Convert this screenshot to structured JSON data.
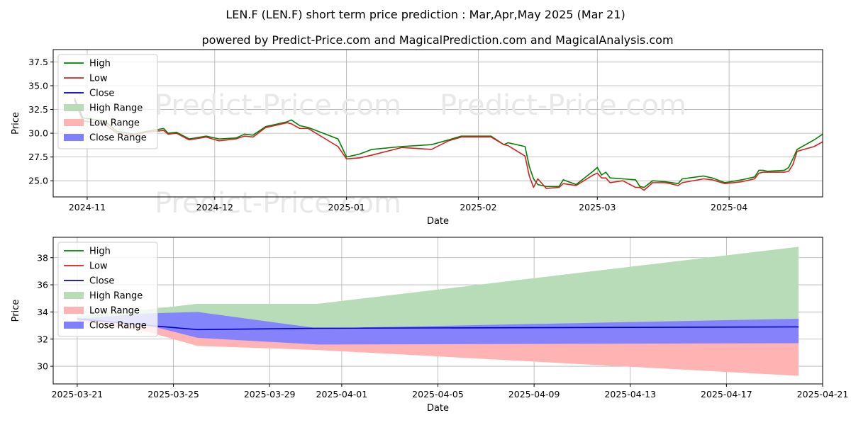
{
  "title": "LEN.F (LEN.F) short term price prediction : Mar,Apr,May 2025 (Mar 21)",
  "subtitle": "powered by Predict-Price.com and MagicalPrediction.com and MagicalAnalysis.com",
  "watermark": "Predict-Price.com",
  "colors": {
    "high": "#008000",
    "low": "#d62020",
    "close": "#0000cc",
    "high_range": "#b7dcb7",
    "low_range": "#ffb3b3",
    "close_range": "#7f7fff"
  },
  "chart_data": [
    {
      "type": "line",
      "xlabel": "Date",
      "ylabel": "Price",
      "xlim": [
        "2024-10-24",
        "2025-04-23"
      ],
      "ylim": [
        23.3,
        38.8
      ],
      "grid": true,
      "legend_position": "top-left",
      "x_ticks": [
        {
          "date": "2024-11-01",
          "label": "2024-11"
        },
        {
          "date": "2024-12-01",
          "label": "2024-12"
        },
        {
          "date": "2025-01-01",
          "label": "2025-01"
        },
        {
          "date": "2025-02-01",
          "label": "2025-02"
        },
        {
          "date": "2025-03-01",
          "label": "2025-03"
        },
        {
          "date": "2025-04-01",
          "label": "2025-04"
        }
      ],
      "y_ticks": [
        {
          "value": 25.0,
          "label": "25.0"
        },
        {
          "value": 27.5,
          "label": "27.5"
        },
        {
          "value": 30.0,
          "label": "30.0"
        },
        {
          "value": 32.5,
          "label": "32.5"
        },
        {
          "value": 35.0,
          "label": "35.0"
        },
        {
          "value": 37.5,
          "label": "37.5"
        }
      ],
      "series": [
        {
          "name": "High",
          "color": "#008000",
          "points": [
            [
              "2024-10-29",
              33.7
            ],
            [
              "2024-10-31",
              31.6
            ],
            [
              "2024-11-05",
              31.3
            ],
            [
              "2024-11-08",
              30.2
            ],
            [
              "2024-11-12",
              29.9
            ],
            [
              "2024-11-15",
              30.2
            ],
            [
              "2024-11-19",
              30.5
            ],
            [
              "2024-11-20",
              30.0
            ],
            [
              "2024-11-22",
              30.1
            ],
            [
              "2024-11-25",
              29.4
            ],
            [
              "2024-11-29",
              29.7
            ],
            [
              "2024-12-02",
              29.4
            ],
            [
              "2024-12-06",
              29.5
            ],
            [
              "2024-12-08",
              29.9
            ],
            [
              "2024-12-10",
              29.8
            ],
            [
              "2024-12-13",
              30.7
            ],
            [
              "2024-12-18",
              31.2
            ],
            [
              "2024-12-19",
              31.4
            ],
            [
              "2024-12-21",
              30.8
            ],
            [
              "2024-12-23",
              30.6
            ],
            [
              "2024-12-30",
              29.4
            ],
            [
              "2025-01-01",
              27.5
            ],
            [
              "2025-01-04",
              27.8
            ],
            [
              "2025-01-07",
              28.3
            ],
            [
              "2025-01-14",
              28.6
            ],
            [
              "2025-01-21",
              28.8
            ],
            [
              "2025-01-25",
              29.3
            ],
            [
              "2025-01-28",
              29.7
            ],
            [
              "2025-02-04",
              29.7
            ],
            [
              "2025-02-07",
              28.8
            ],
            [
              "2025-02-08",
              29.0
            ],
            [
              "2025-02-12",
              28.6
            ],
            [
              "2025-02-13",
              26.5
            ],
            [
              "2025-02-14",
              25.2
            ],
            [
              "2025-02-15",
              24.6
            ],
            [
              "2025-02-17",
              24.4
            ],
            [
              "2025-02-20",
              24.4
            ],
            [
              "2025-02-21",
              25.1
            ],
            [
              "2025-02-24",
              24.6
            ],
            [
              "2025-02-28",
              26.0
            ],
            [
              "2025-03-01",
              26.4
            ],
            [
              "2025-03-02",
              25.6
            ],
            [
              "2025-03-03",
              25.9
            ],
            [
              "2025-03-04",
              25.3
            ],
            [
              "2025-03-07",
              25.2
            ],
            [
              "2025-03-10",
              25.1
            ],
            [
              "2025-03-11",
              24.4
            ],
            [
              "2025-03-12",
              24.3
            ],
            [
              "2025-03-14",
              25.0
            ],
            [
              "2025-03-17",
              24.9
            ],
            [
              "2025-03-20",
              24.7
            ],
            [
              "2025-03-21",
              25.2
            ],
            [
              "2025-03-26",
              25.5
            ],
            [
              "2025-03-28",
              25.3
            ],
            [
              "2025-03-31",
              24.8
            ],
            [
              "2025-04-04",
              25.1
            ],
            [
              "2025-04-07",
              25.4
            ],
            [
              "2025-04-08",
              26.1
            ],
            [
              "2025-04-09",
              26.1
            ],
            [
              "2025-04-10",
              26.0
            ],
            [
              "2025-04-14",
              26.1
            ],
            [
              "2025-04-15",
              26.4
            ],
            [
              "2025-04-16",
              27.3
            ],
            [
              "2025-04-17",
              28.3
            ],
            [
              "2025-04-21",
              29.3
            ],
            [
              "2025-04-23",
              29.9
            ]
          ]
        },
        {
          "name": "Low",
          "color": "#d62020",
          "points": [
            [
              "2024-10-29",
              33.5
            ],
            [
              "2024-10-31",
              31.3
            ],
            [
              "2024-11-05",
              31.0
            ],
            [
              "2024-11-08",
              30.0
            ],
            [
              "2024-11-12",
              29.8
            ],
            [
              "2024-11-15",
              30.1
            ],
            [
              "2024-11-19",
              30.3
            ],
            [
              "2024-11-20",
              29.9
            ],
            [
              "2024-11-22",
              30.0
            ],
            [
              "2024-11-25",
              29.3
            ],
            [
              "2024-11-29",
              29.6
            ],
            [
              "2024-12-02",
              29.2
            ],
            [
              "2024-12-06",
              29.4
            ],
            [
              "2024-12-08",
              29.7
            ],
            [
              "2024-12-10",
              29.6
            ],
            [
              "2024-12-13",
              30.6
            ],
            [
              "2024-12-18",
              31.1
            ],
            [
              "2024-12-19",
              31.0
            ],
            [
              "2024-12-21",
              30.5
            ],
            [
              "2024-12-23",
              30.5
            ],
            [
              "2024-12-30",
              28.6
            ],
            [
              "2025-01-01",
              27.3
            ],
            [
              "2025-01-04",
              27.4
            ],
            [
              "2025-01-07",
              27.7
            ],
            [
              "2025-01-14",
              28.5
            ],
            [
              "2025-01-21",
              28.3
            ],
            [
              "2025-01-25",
              29.2
            ],
            [
              "2025-01-28",
              29.6
            ],
            [
              "2025-02-04",
              29.6
            ],
            [
              "2025-02-07",
              28.8
            ],
            [
              "2025-02-08",
              28.7
            ],
            [
              "2025-02-12",
              27.6
            ],
            [
              "2025-02-13",
              25.5
            ],
            [
              "2025-02-14",
              24.3
            ],
            [
              "2025-02-15",
              25.2
            ],
            [
              "2025-02-17",
              24.2
            ],
            [
              "2025-02-20",
              24.3
            ],
            [
              "2025-02-21",
              24.7
            ],
            [
              "2025-02-24",
              24.5
            ],
            [
              "2025-02-28",
              25.6
            ],
            [
              "2025-03-01",
              25.8
            ],
            [
              "2025-03-02",
              25.3
            ],
            [
              "2025-03-03",
              25.3
            ],
            [
              "2025-03-04",
              24.8
            ],
            [
              "2025-03-07",
              25.0
            ],
            [
              "2025-03-10",
              24.3
            ],
            [
              "2025-03-11",
              24.3
            ],
            [
              "2025-03-12",
              24.0
            ],
            [
              "2025-03-14",
              24.8
            ],
            [
              "2025-03-17",
              24.8
            ],
            [
              "2025-03-20",
              24.5
            ],
            [
              "2025-03-21",
              24.8
            ],
            [
              "2025-03-26",
              25.2
            ],
            [
              "2025-03-28",
              25.1
            ],
            [
              "2025-03-31",
              24.7
            ],
            [
              "2025-04-04",
              24.9
            ],
            [
              "2025-04-07",
              25.2
            ],
            [
              "2025-04-08",
              25.8
            ],
            [
              "2025-04-09",
              25.9
            ],
            [
              "2025-04-10",
              25.9
            ],
            [
              "2025-04-14",
              25.9
            ],
            [
              "2025-04-15",
              26.0
            ],
            [
              "2025-04-16",
              26.7
            ],
            [
              "2025-04-17",
              28.1
            ],
            [
              "2025-04-21",
              28.6
            ],
            [
              "2025-04-23",
              29.1
            ]
          ]
        }
      ]
    },
    {
      "type": "line",
      "xlabel": "Date",
      "ylabel": "Price",
      "xlim": [
        "2025-03-20",
        "2025-04-21"
      ],
      "ylim": [
        28.7,
        39.5
      ],
      "grid": true,
      "legend_position": "top-left",
      "x_ticks": [
        {
          "date": "2025-03-21",
          "label": "2025-03-21"
        },
        {
          "date": "2025-03-25",
          "label": "2025-03-25"
        },
        {
          "date": "2025-03-29",
          "label": "2025-03-29"
        },
        {
          "date": "2025-04-01",
          "label": "2025-04-01"
        },
        {
          "date": "2025-04-05",
          "label": "2025-04-05"
        },
        {
          "date": "2025-04-09",
          "label": "2025-04-09"
        },
        {
          "date": "2025-04-13",
          "label": "2025-04-13"
        },
        {
          "date": "2025-04-17",
          "label": "2025-04-17"
        },
        {
          "date": "2025-04-21",
          "label": "2025-04-21"
        }
      ],
      "y_ticks": [
        {
          "value": 30,
          "label": "30"
        },
        {
          "value": 32,
          "label": "32"
        },
        {
          "value": 34,
          "label": "34"
        },
        {
          "value": 36,
          "label": "36"
        },
        {
          "value": 38,
          "label": "38"
        }
      ],
      "series": [
        {
          "name": "High",
          "color": "#008000",
          "points": []
        },
        {
          "name": "Low",
          "color": "#d62020",
          "points": []
        },
        {
          "name": "Close",
          "color": "#0000cc",
          "points": [
            [
              "2025-03-21",
              33.5
            ],
            [
              "2025-03-24",
              33.0
            ],
            [
              "2025-03-26",
              32.7
            ],
            [
              "2025-03-31",
              32.8
            ],
            [
              "2025-04-20",
              32.9
            ]
          ]
        }
      ],
      "ranges": [
        {
          "name": "High Range",
          "color": "#b7dcb7",
          "points": [
            [
              "2025-03-21",
              33.7,
              33.5
            ],
            [
              "2025-03-24",
              34.2,
              33.0
            ],
            [
              "2025-03-26",
              34.6,
              32.7
            ],
            [
              "2025-03-31",
              34.6,
              32.8
            ],
            [
              "2025-04-20",
              38.8,
              32.9
            ]
          ]
        },
        {
          "name": "Low Range",
          "color": "#ffb3b3",
          "points": [
            [
              "2025-03-21",
              33.5,
              33.3
            ],
            [
              "2025-03-24",
              33.0,
              32.5
            ],
            [
              "2025-03-26",
              32.7,
              31.5
            ],
            [
              "2025-03-31",
              32.8,
              31.2
            ],
            [
              "2025-04-20",
              32.9,
              29.3
            ]
          ]
        },
        {
          "name": "Close Range",
          "color": "#7f7fff",
          "points": [
            [
              "2025-03-21",
              33.5,
              33.4
            ],
            [
              "2025-03-24",
              33.9,
              33.0
            ],
            [
              "2025-03-26",
              34.0,
              32.1
            ],
            [
              "2025-03-31",
              32.8,
              31.6
            ],
            [
              "2025-04-20",
              33.5,
              31.7
            ]
          ]
        }
      ]
    }
  ]
}
